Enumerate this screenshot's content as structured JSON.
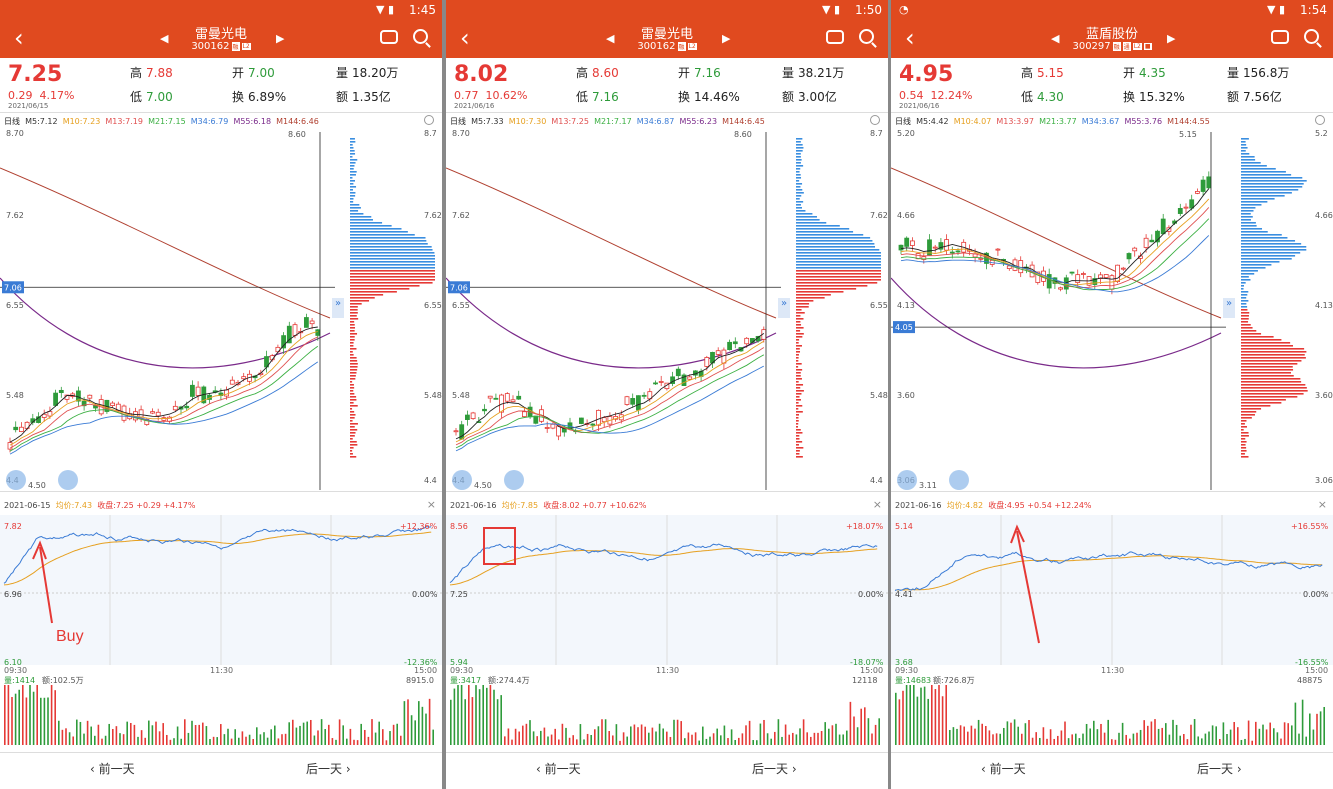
{
  "panels": [
    {
      "time": "1:45",
      "name": "雷曼光电",
      "code": "300162",
      "tags": [
        "融",
        "L2"
      ],
      "app_icon": false,
      "price": "7.25",
      "change": "0.29",
      "change_pct": "4.17%",
      "date": "2021/06/15",
      "high_label": "高",
      "high": "7.88",
      "open_label": "开",
      "open": "7.00",
      "vol_label": "量",
      "vol": "18.20万",
      "low_label": "低",
      "low": "7.00",
      "turn_label": "换",
      "turn": "6.89%",
      "amt_label": "额",
      "amt": "1.35亿",
      "ma": {
        "d": "日线",
        "m5": "M5:7.12",
        "m10": "M10:7.23",
        "m13": "M13:7.19",
        "m21": "M21:7.15",
        "m34": "M34:6.79",
        "m55": "M55:6.18",
        "m144": "M144:6.46"
      },
      "k_axis": [
        "8.70",
        "7.62",
        "6.55",
        "5.48",
        "4.4"
      ],
      "k_axis_right": [
        "8.7",
        "7.62",
        "6.55",
        "5.48",
        "4.4"
      ],
      "k_hi": "8.60",
      "k_lo": "4.50",
      "k_line": "7.06",
      "k_line_pos": 0.44,
      "tl": {
        "date": "2021-06-15",
        "avg_label": "均价:",
        "avg": "7.43",
        "close_label": "收盘:",
        "close": "7.25 +0.29 +4.17%",
        "top": "7.82",
        "mid": "6.96",
        "bot": "6.10",
        "tp": "+12.36%",
        "zero": "0.00%",
        "bp": "-12.36%",
        "t0": "09:30",
        "t1": "11:30",
        "t2": "15:00",
        "vol_left": "量:1414",
        "vol_amt": "额:102.5万",
        "vol_right": "8915.0"
      },
      "annotation": "Buy",
      "prev_label": "前一天",
      "next_label": "后一天"
    },
    {
      "time": "1:50",
      "name": "雷曼光电",
      "code": "300162",
      "tags": [
        "融",
        "L2"
      ],
      "app_icon": false,
      "price": "8.02",
      "change": "0.77",
      "change_pct": "10.62%",
      "date": "2021/06/16",
      "high_label": "高",
      "high": "8.60",
      "open_label": "开",
      "open": "7.16",
      "vol_label": "量",
      "vol": "38.21万",
      "low_label": "低",
      "low": "7.16",
      "turn_label": "换",
      "turn": "14.46%",
      "amt_label": "额",
      "amt": "3.00亿",
      "ma": {
        "d": "日线",
        "m5": "M5:7.33",
        "m10": "M10:7.30",
        "m13": "M13:7.25",
        "m21": "M21:7.17",
        "m34": "M34:6.87",
        "m55": "M55:6.23",
        "m144": "M144:6.45"
      },
      "k_axis": [
        "8.70",
        "7.62",
        "6.55",
        "5.48",
        "4.4"
      ],
      "k_axis_right": [
        "8.7",
        "7.62",
        "6.55",
        "5.48",
        "4.4"
      ],
      "k_hi": "8.60",
      "k_lo": "4.50",
      "k_line": "7.06",
      "k_line_pos": 0.44,
      "tl": {
        "date": "2021-06-16",
        "avg_label": "均价:",
        "avg": "7.85",
        "close_label": "收盘:",
        "close": "8.02 +0.77 +10.62%",
        "top": "8.56",
        "mid": "7.25",
        "bot": "5.94",
        "tp": "+18.07%",
        "zero": "0.00%",
        "bp": "-18.07%",
        "t0": "09:30",
        "t1": "11:30",
        "t2": "15:00",
        "vol_left": "量:3417",
        "vol_amt": "额:274.4万",
        "vol_right": "12118"
      },
      "annotation": "",
      "prev_label": "前一天",
      "next_label": "后一天"
    },
    {
      "time": "1:54",
      "name": "蓝盾股份",
      "code": "300297",
      "tags": [
        "融",
        "通",
        "L2",
        "■"
      ],
      "app_icon": true,
      "price": "4.95",
      "change": "0.54",
      "change_pct": "12.24%",
      "date": "2021/06/16",
      "high_label": "高",
      "high": "5.15",
      "open_label": "开",
      "open": "4.35",
      "vol_label": "量",
      "vol": "156.8万",
      "low_label": "低",
      "low": "4.30",
      "turn_label": "换",
      "turn": "15.32%",
      "amt_label": "额",
      "amt": "7.56亿",
      "ma": {
        "d": "日线",
        "m5": "M5:4.42",
        "m10": "M10:4.07",
        "m13": "M13:3.97",
        "m21": "M21:3.77",
        "m34": "M34:3.67",
        "m55": "M55:3.76",
        "m144": "M144:4.55"
      },
      "k_axis": [
        "5.20",
        "4.66",
        "4.13",
        "3.60",
        "3.06"
      ],
      "k_axis_right": [
        "5.2",
        "4.66",
        "4.13",
        "3.60",
        "3.06"
      ],
      "k_hi": "5.15",
      "k_lo": "3.11",
      "k_line": "4.05",
      "k_line_pos": 0.55,
      "tl": {
        "date": "2021-06-16",
        "avg_label": "均价:",
        "avg": "4.82",
        "close_label": "收盘:",
        "close": "4.95 +0.54 +12.24%",
        "top": "5.14",
        "mid": "4.41",
        "bot": "3.68",
        "tp": "+16.55%",
        "zero": "0.00%",
        "bp": "-16.55%",
        "t0": "09:30",
        "t1": "11:30",
        "t2": "15:00",
        "vol_left": "量:14683",
        "vol_amt": "额:726.8万",
        "vol_right": "48875"
      },
      "annotation": "",
      "prev_label": "前一天",
      "next_label": "后一天"
    }
  ],
  "colors": {
    "up": "#e53935",
    "down": "#2e9b3a",
    "header": "#e04a1f",
    "tline": "#3a7bd5",
    "avg": "#e6a020"
  }
}
